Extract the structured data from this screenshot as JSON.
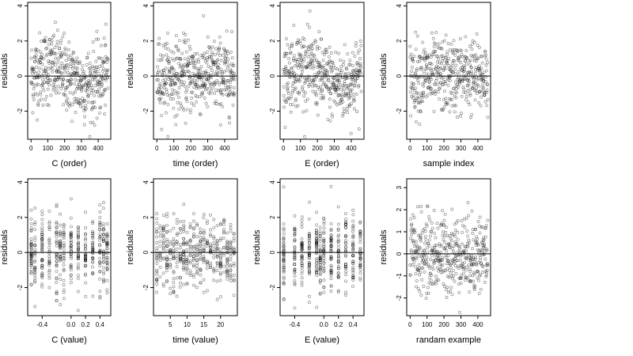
{
  "chart_data": [
    {
      "type": "scatter",
      "xlabel": "C (order)",
      "ylabel": "residuals",
      "xticks": [
        0,
        100,
        200,
        300,
        400
      ],
      "xtick_labels": [
        "0",
        "100",
        "200",
        "300",
        "400"
      ],
      "yticks": [
        -2,
        0,
        2,
        4
      ],
      "ytick_labels": [
        "-2",
        "0",
        "2",
        "4"
      ],
      "xlim": [
        -20,
        475
      ],
      "ylim": [
        -3.6,
        4.2
      ],
      "n": 460,
      "pattern": "order",
      "shape": "trend",
      "hline": 0
    },
    {
      "type": "scatter",
      "xlabel": "time (order)",
      "ylabel": "residuals",
      "xticks": [
        0,
        100,
        200,
        300,
        400
      ],
      "xtick_labels": [
        "0",
        "100",
        "200",
        "300",
        "400"
      ],
      "yticks": [
        -2,
        0,
        2,
        4
      ],
      "ytick_labels": [
        "-2",
        "0",
        "2",
        "4"
      ],
      "xlim": [
        -20,
        475
      ],
      "ylim": [
        -3.6,
        4.2
      ],
      "n": 460,
      "pattern": "order",
      "shape": "uniform",
      "hline": 0
    },
    {
      "type": "scatter",
      "xlabel": "E (order)",
      "ylabel": "residuals",
      "xticks": [
        0,
        100,
        200,
        300,
        400
      ],
      "xtick_labels": [
        "0",
        "100",
        "200",
        "300",
        "400"
      ],
      "yticks": [
        -2,
        0,
        2,
        4
      ],
      "ytick_labels": [
        "-2",
        "0",
        "2",
        "4"
      ],
      "xlim": [
        -20,
        475
      ],
      "ylim": [
        -3.6,
        4.2
      ],
      "n": 460,
      "pattern": "order",
      "shape": "trend",
      "hline": 0
    },
    {
      "type": "scatter",
      "xlabel": "sample index",
      "ylabel": "residuals",
      "xticks": [
        0,
        100,
        200,
        300,
        400
      ],
      "xtick_labels": [
        "0",
        "100",
        "200",
        "300",
        "400"
      ],
      "yticks": [
        -2,
        0,
        2,
        4
      ],
      "ytick_labels": [
        "-2",
        "0",
        "2",
        "4"
      ],
      "xlim": [
        -20,
        475
      ],
      "ylim": [
        -3.6,
        4.2
      ],
      "n": 460,
      "pattern": "order",
      "shape": "uniform",
      "hline": 0
    },
    {
      "type": "scatter",
      "xlabel": "C (value)",
      "ylabel": "residuals",
      "xticks": [
        -0.4,
        0.0,
        0.2,
        0.4
      ],
      "xtick_labels": [
        "-0.4",
        "0.0",
        "0.2",
        "0.4"
      ],
      "yticks": [
        -2,
        0,
        2,
        4
      ],
      "ytick_labels": [
        "-2",
        "0",
        "2",
        "4"
      ],
      "xlim": [
        -0.6,
        0.55
      ],
      "ylim": [
        -3.6,
        4.2
      ],
      "n": 460,
      "pattern": "discrete",
      "levels": [
        -0.55,
        -0.5,
        -0.4,
        -0.3,
        -0.2,
        -0.15,
        -0.1,
        0.0,
        0.1,
        0.2,
        0.3,
        0.4,
        0.45,
        0.5
      ],
      "hline": 0
    },
    {
      "type": "scatter",
      "xlabel": "time (value)",
      "ylabel": "residuals",
      "xticks": [
        5,
        10,
        15,
        20
      ],
      "xtick_labels": [
        "5",
        "10",
        "15",
        "20"
      ],
      "yticks": [
        -2,
        0,
        2,
        4
      ],
      "ytick_labels": [
        "-2",
        "0",
        "2",
        "4"
      ],
      "xlim": [
        0,
        25
      ],
      "ylim": [
        -3.6,
        4.2
      ],
      "n": 460,
      "pattern": "discrete",
      "levels": [
        1,
        2,
        3,
        4,
        5,
        6,
        7,
        8,
        9,
        10,
        11,
        12,
        13,
        14,
        15,
        16,
        17,
        18,
        19,
        20,
        21,
        22,
        23,
        24
      ],
      "hline": 0
    },
    {
      "type": "scatter",
      "xlabel": "E (value)",
      "ylabel": "residuals",
      "xticks": [
        -0.4,
        0.0,
        0.2,
        0.4
      ],
      "xtick_labels": [
        "-0.4",
        "0.0",
        "0.2",
        "0.4"
      ],
      "yticks": [
        -2,
        0,
        2,
        4
      ],
      "ytick_labels": [
        "-2",
        "0",
        "2",
        "4"
      ],
      "xlim": [
        -0.6,
        0.55
      ],
      "ylim": [
        -3.6,
        4.2
      ],
      "n": 460,
      "pattern": "discrete",
      "levels": [
        -0.55,
        -0.4,
        -0.3,
        -0.2,
        -0.1,
        -0.05,
        0.0,
        0.1,
        0.2,
        0.3,
        0.4,
        0.5
      ],
      "hline": 0
    },
    {
      "type": "scatter",
      "xlabel": "randam example",
      "ylabel": "residuals",
      "xticks": [
        0,
        100,
        200,
        300,
        400
      ],
      "xtick_labels": [
        "0",
        "100",
        "200",
        "300",
        "400"
      ],
      "yticks": [
        -2,
        -1,
        0,
        1,
        2,
        3
      ],
      "ytick_labels": [
        "-2",
        "-1",
        "0",
        "1",
        "2",
        "3"
      ],
      "xlim": [
        -20,
        475
      ],
      "ylim": [
        -2.8,
        3.4
      ],
      "n": 460,
      "pattern": "order",
      "shape": "random",
      "hline": 0
    }
  ]
}
